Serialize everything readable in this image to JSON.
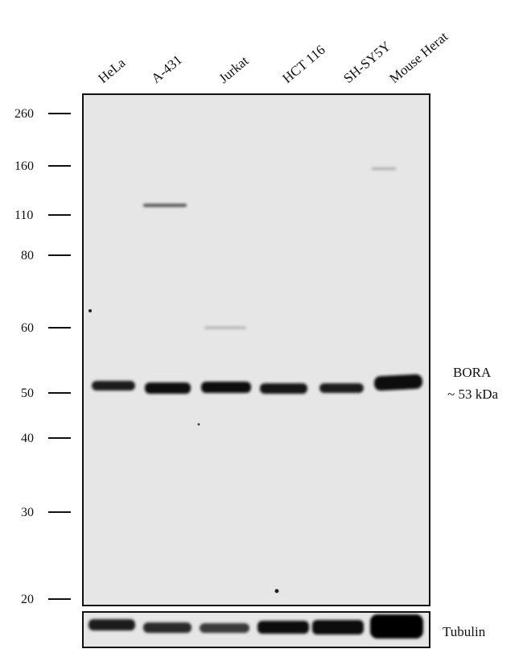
{
  "lanes": [
    "HeLa",
    "A-431",
    "Jurkat",
    "HCT 116",
    "SH-SY5Y",
    "Mouse Herat"
  ],
  "markers": [
    260,
    160,
    110,
    80,
    60,
    50,
    40,
    30,
    20
  ],
  "target": {
    "name": "BORA",
    "size": "~ 53  kDa"
  },
  "loading_control": "Tubulin"
}
